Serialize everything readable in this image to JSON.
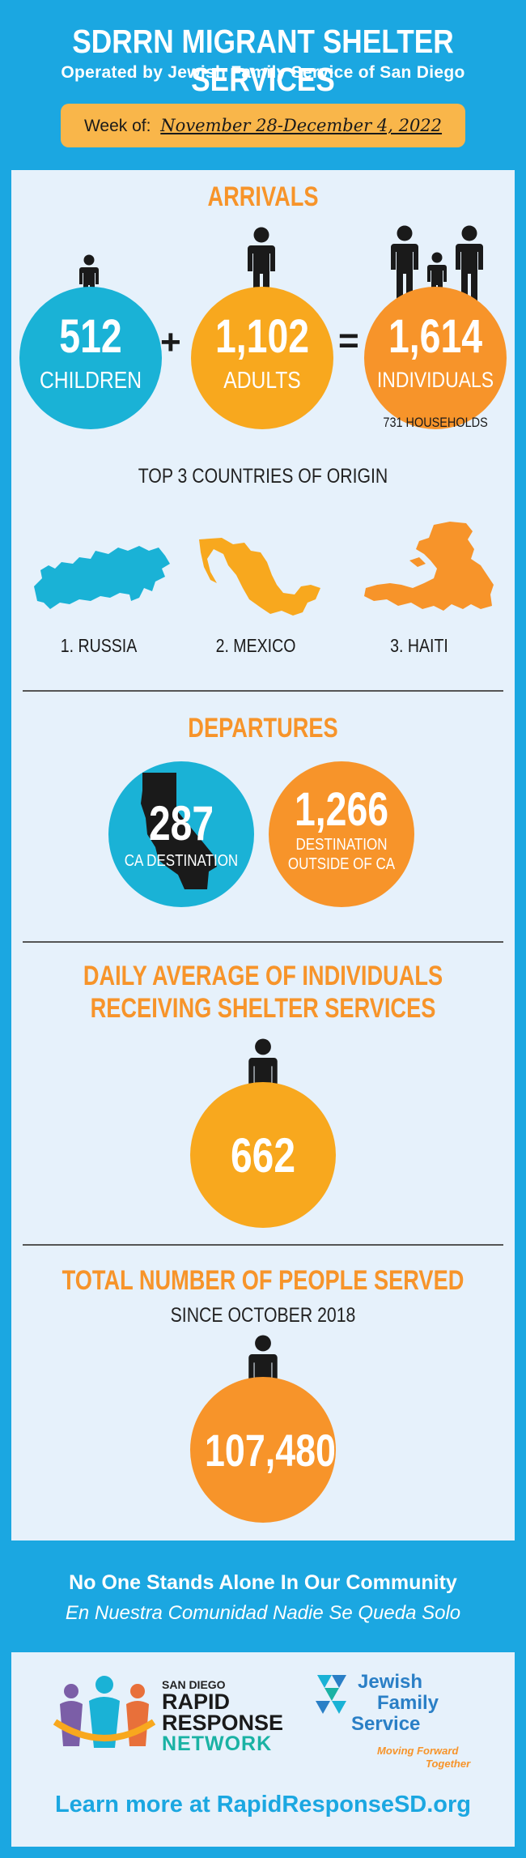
{
  "header": {
    "title": "SDRRN MIGRANT SHELTER SERVICES",
    "subtitle": "Operated by Jewish Family Service of San Diego",
    "week_label": "Week of:",
    "week_dates": "November 28-December 4, 2022"
  },
  "arrivals": {
    "title": "ARRIVALS",
    "children_value": "512",
    "children_label": "CHILDREN",
    "plus": "+",
    "adults_value": "1,102",
    "adults_label": "ADULTS",
    "equals": "=",
    "individuals_value": "1,614",
    "individuals_label": "INDIVIDUALS",
    "households": "731 HOUSEHOLDS"
  },
  "countries": {
    "title": "TOP 3 COUNTRIES OF ORIGIN",
    "items": [
      "1. RUSSIA",
      "2. MEXICO",
      "3. HAITI"
    ]
  },
  "departures": {
    "title": "DEPARTURES",
    "ca_value": "287",
    "ca_label": "CA DESTINATION",
    "outside_value": "1,266",
    "outside_label_line1": "DESTINATION",
    "outside_label_line2": "OUTSIDE OF CA"
  },
  "daily": {
    "title_line1": "DAILY AVERAGE OF INDIVIDUALS",
    "title_line2": "RECEIVING SHELTER SERVICES",
    "value": "662"
  },
  "total": {
    "title": "TOTAL NUMBER OF PEOPLE SERVED",
    "subtitle": "SINCE OCTOBER 2018",
    "value": "107,480"
  },
  "tagline": {
    "english": "No One Stands Alone In Our Community",
    "spanish": "En Nuestra Comunidad Nadie Se Queda Solo"
  },
  "footer": {
    "rrn_small": "SAN DIEGO",
    "rrn_line1": "RAPID",
    "rrn_line2": "RESPONSE",
    "rrn_line3": "NETWORK",
    "jfs_line1": "Jewish",
    "jfs_line2": "Family",
    "jfs_line3": "Service",
    "jfs_tag1": "Moving Forward",
    "jfs_tag2": "Together",
    "learn_more": "Learn more at RapidResponseSD.org"
  },
  "colors": {
    "background_blue": "#1ba7e1",
    "panel": "#e6f1fb",
    "orange": "#f7942a",
    "yellow": "#f8a81e",
    "circle_blue": "#1ab2d6"
  }
}
